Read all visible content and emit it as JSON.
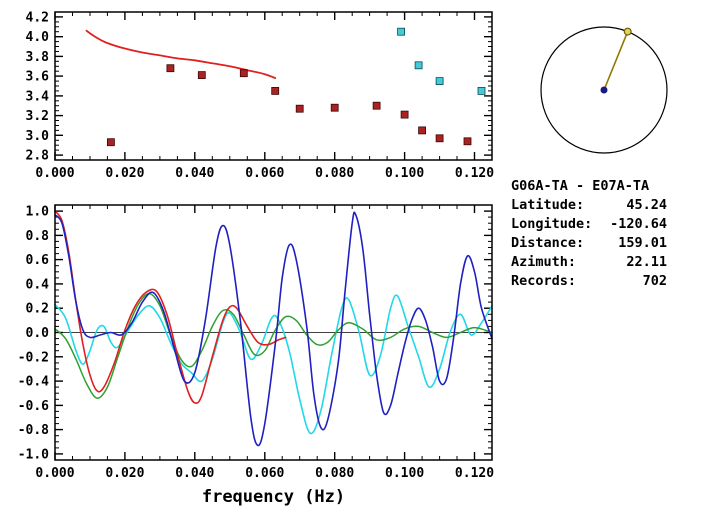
{
  "station_info": {
    "title": "G06A-TA - E07A-TA",
    "rows": [
      {
        "label": "Latitude:",
        "value": "45.24"
      },
      {
        "label": "Longitude:",
        "value": "-120.64"
      },
      {
        "label": "Distance:",
        "value": "159.01"
      },
      {
        "label": "Azimuth:",
        "value": "22.11"
      },
      {
        "label": "Records:",
        "value": "702"
      }
    ]
  },
  "chart_data": [
    {
      "id": "dispersion",
      "type": "scatter",
      "title": "",
      "xlabel": "",
      "ylabel": "",
      "xlim": [
        0,
        0.125
      ],
      "ylim": [
        2.75,
        4.25
      ],
      "xticks": [
        0.0,
        0.02,
        0.04,
        0.06,
        0.08,
        0.1,
        0.12
      ],
      "xtick_labels": [
        "0.000",
        "0.020",
        "0.040",
        "0.060",
        "0.080",
        "0.100",
        "0.120"
      ],
      "yticks": [
        2.8,
        3.0,
        3.2,
        3.4,
        3.6,
        3.8,
        4.0,
        4.2
      ],
      "ytick_labels": [
        "2.8",
        "3.0",
        "3.2",
        "3.4",
        "3.6",
        "3.8",
        "4.0",
        "4.2"
      ],
      "x_minor_step": 0.005,
      "y_minor_step": 0.05,
      "zero_line": false,
      "grid": false,
      "series": [
        {
          "name": "reference-dispersion-curve",
          "type": "line",
          "color": "#e02020",
          "width": 1.8,
          "points": [
            [
              0.009,
              4.06
            ],
            [
              0.011,
              4.01
            ],
            [
              0.014,
              3.95
            ],
            [
              0.017,
              3.91
            ],
            [
              0.02,
              3.88
            ],
            [
              0.025,
              3.84
            ],
            [
              0.03,
              3.81
            ],
            [
              0.035,
              3.78
            ],
            [
              0.04,
              3.76
            ],
            [
              0.045,
              3.73
            ],
            [
              0.05,
              3.7
            ],
            [
              0.055,
              3.66
            ],
            [
              0.06,
              3.62
            ],
            [
              0.063,
              3.58
            ]
          ]
        },
        {
          "name": "measured-phase-velocity",
          "type": "scatter",
          "marker": "square",
          "size": 7,
          "color": "#aa2222",
          "edge": "#3a0808",
          "points": [
            [
              0.016,
              2.93
            ],
            [
              0.033,
              3.68
            ],
            [
              0.042,
              3.61
            ],
            [
              0.054,
              3.63
            ],
            [
              0.063,
              3.45
            ],
            [
              0.07,
              3.27
            ],
            [
              0.08,
              3.28
            ],
            [
              0.092,
              3.3
            ],
            [
              0.1,
              3.21
            ],
            [
              0.105,
              3.05
            ],
            [
              0.11,
              2.97
            ],
            [
              0.118,
              2.94
            ]
          ]
        },
        {
          "name": "rejected-phase-velocity",
          "type": "scatter",
          "marker": "square",
          "size": 7,
          "color": "#45c8d8",
          "edge": "#0a4a52",
          "points": [
            [
              0.099,
              4.05
            ],
            [
              0.104,
              3.71
            ],
            [
              0.11,
              3.55
            ],
            [
              0.122,
              3.45
            ]
          ]
        }
      ]
    },
    {
      "id": "waveforms",
      "type": "line",
      "title": "",
      "xlabel": "frequency (Hz)",
      "ylabel": "",
      "xlim": [
        0,
        0.125
      ],
      "ylim": [
        -1.05,
        1.05
      ],
      "xticks": [
        0.0,
        0.02,
        0.04,
        0.06,
        0.08,
        0.1,
        0.12
      ],
      "xtick_labels": [
        "0.000",
        "0.020",
        "0.040",
        "0.060",
        "0.080",
        "0.100",
        "0.120"
      ],
      "yticks": [
        -1.0,
        -0.8,
        -0.6,
        -0.4,
        -0.2,
        0.0,
        0.2,
        0.4,
        0.6,
        0.8,
        1.0
      ],
      "ytick_labels": [
        "-1.0",
        "-0.8",
        "-0.6",
        "-0.4",
        "-0.2",
        "0.0",
        "0.2",
        "0.4",
        "0.6",
        "0.8",
        "1.0"
      ],
      "x_minor_step": 0.005,
      "y_minor_step": 0.05,
      "zero_line": true,
      "grid": false,
      "series": [
        {
          "name": "coherence-cyan",
          "type": "line",
          "color": "#20d8e8",
          "width": 1.6,
          "points": [
            [
              0.0,
              0.23
            ],
            [
              0.003,
              0.12
            ],
            [
              0.006,
              -0.15
            ],
            [
              0.008,
              -0.26
            ],
            [
              0.01,
              -0.15
            ],
            [
              0.012,
              0.02
            ],
            [
              0.014,
              0.05
            ],
            [
              0.016,
              -0.08
            ],
            [
              0.018,
              -0.12
            ],
            [
              0.021,
              0.02
            ],
            [
              0.024,
              0.15
            ],
            [
              0.027,
              0.22
            ],
            [
              0.03,
              0.12
            ],
            [
              0.033,
              -0.08
            ],
            [
              0.036,
              -0.25
            ],
            [
              0.039,
              -0.33
            ],
            [
              0.042,
              -0.4
            ],
            [
              0.045,
              -0.22
            ],
            [
              0.048,
              0.08
            ],
            [
              0.05,
              0.16
            ],
            [
              0.053,
              0.0
            ],
            [
              0.056,
              -0.22
            ],
            [
              0.059,
              -0.1
            ],
            [
              0.062,
              0.12
            ],
            [
              0.064,
              0.1
            ],
            [
              0.067,
              -0.15
            ],
            [
              0.07,
              -0.55
            ],
            [
              0.073,
              -0.83
            ],
            [
              0.076,
              -0.65
            ],
            [
              0.079,
              -0.2
            ],
            [
              0.082,
              0.2
            ],
            [
              0.084,
              0.27
            ],
            [
              0.087,
              0.0
            ],
            [
              0.09,
              -0.35
            ],
            [
              0.093,
              -0.2
            ],
            [
              0.096,
              0.2
            ],
            [
              0.098,
              0.3
            ],
            [
              0.101,
              0.05
            ],
            [
              0.104,
              -0.2
            ],
            [
              0.107,
              -0.45
            ],
            [
              0.11,
              -0.3
            ],
            [
              0.113,
              0.0
            ],
            [
              0.116,
              0.15
            ],
            [
              0.119,
              -0.02
            ],
            [
              0.122,
              0.08
            ],
            [
              0.125,
              0.22
            ]
          ]
        },
        {
          "name": "smoothed-green",
          "type": "line",
          "color": "#30a030",
          "width": 1.5,
          "points": [
            [
              0.0,
              0.03
            ],
            [
              0.003,
              -0.05
            ],
            [
              0.006,
              -0.22
            ],
            [
              0.009,
              -0.42
            ],
            [
              0.012,
              -0.54
            ],
            [
              0.015,
              -0.45
            ],
            [
              0.018,
              -0.2
            ],
            [
              0.021,
              0.05
            ],
            [
              0.024,
              0.24
            ],
            [
              0.027,
              0.32
            ],
            [
              0.03,
              0.22
            ],
            [
              0.033,
              -0.02
            ],
            [
              0.036,
              -0.22
            ],
            [
              0.039,
              -0.28
            ],
            [
              0.042,
              -0.15
            ],
            [
              0.045,
              0.05
            ],
            [
              0.048,
              0.18
            ],
            [
              0.051,
              0.15
            ],
            [
              0.054,
              -0.02
            ],
            [
              0.057,
              -0.18
            ],
            [
              0.06,
              -0.15
            ],
            [
              0.063,
              0.02
            ],
            [
              0.066,
              0.13
            ],
            [
              0.069,
              0.1
            ],
            [
              0.072,
              -0.02
            ],
            [
              0.075,
              -0.1
            ],
            [
              0.078,
              -0.08
            ],
            [
              0.081,
              0.02
            ],
            [
              0.084,
              0.08
            ],
            [
              0.088,
              0.03
            ],
            [
              0.092,
              -0.06
            ],
            [
              0.096,
              -0.04
            ],
            [
              0.1,
              0.03
            ],
            [
              0.104,
              0.05
            ],
            [
              0.108,
              0.0
            ],
            [
              0.112,
              -0.04
            ],
            [
              0.116,
              0.0
            ],
            [
              0.12,
              0.04
            ],
            [
              0.125,
              0.0
            ]
          ]
        },
        {
          "name": "model-fit-red",
          "type": "line",
          "color": "#e02020",
          "width": 1.6,
          "points": [
            [
              0.0,
              1.0
            ],
            [
              0.002,
              0.92
            ],
            [
              0.004,
              0.65
            ],
            [
              0.006,
              0.25
            ],
            [
              0.008,
              -0.1
            ],
            [
              0.01,
              -0.35
            ],
            [
              0.012,
              -0.48
            ],
            [
              0.014,
              -0.45
            ],
            [
              0.017,
              -0.25
            ],
            [
              0.02,
              0.02
            ],
            [
              0.023,
              0.22
            ],
            [
              0.026,
              0.33
            ],
            [
              0.029,
              0.34
            ],
            [
              0.032,
              0.15
            ],
            [
              0.035,
              -0.18
            ],
            [
              0.038,
              -0.48
            ],
            [
              0.04,
              -0.58
            ],
            [
              0.042,
              -0.52
            ],
            [
              0.045,
              -0.2
            ],
            [
              0.048,
              0.1
            ],
            [
              0.05,
              0.21
            ],
            [
              0.052,
              0.2
            ],
            [
              0.055,
              0.05
            ],
            [
              0.058,
              -0.08
            ],
            [
              0.061,
              -0.1
            ],
            [
              0.064,
              -0.06
            ],
            [
              0.066,
              -0.04
            ]
          ]
        },
        {
          "name": "cross-spectrum-blue",
          "type": "line",
          "color": "#2020c0",
          "width": 1.6,
          "points": [
            [
              0.0,
              0.97
            ],
            [
              0.002,
              0.9
            ],
            [
              0.004,
              0.62
            ],
            [
              0.006,
              0.25
            ],
            [
              0.008,
              0.02
            ],
            [
              0.01,
              -0.04
            ],
            [
              0.013,
              -0.02
            ],
            [
              0.016,
              0.0
            ],
            [
              0.019,
              -0.02
            ],
            [
              0.022,
              0.08
            ],
            [
              0.025,
              0.25
            ],
            [
              0.028,
              0.33
            ],
            [
              0.031,
              0.18
            ],
            [
              0.034,
              -0.12
            ],
            [
              0.037,
              -0.4
            ],
            [
              0.04,
              -0.33
            ],
            [
              0.043,
              0.1
            ],
            [
              0.046,
              0.7
            ],
            [
              0.048,
              0.88
            ],
            [
              0.05,
              0.72
            ],
            [
              0.053,
              0.1
            ],
            [
              0.056,
              -0.7
            ],
            [
              0.058,
              -0.93
            ],
            [
              0.06,
              -0.75
            ],
            [
              0.063,
              -0.1
            ],
            [
              0.065,
              0.45
            ],
            [
              0.067,
              0.72
            ],
            [
              0.069,
              0.6
            ],
            [
              0.072,
              0.05
            ],
            [
              0.074,
              -0.5
            ],
            [
              0.076,
              -0.78
            ],
            [
              0.078,
              -0.72
            ],
            [
              0.081,
              -0.25
            ],
            [
              0.083,
              0.35
            ],
            [
              0.085,
              0.9
            ],
            [
              0.086,
              0.97
            ],
            [
              0.088,
              0.7
            ],
            [
              0.09,
              0.15
            ],
            [
              0.092,
              -0.35
            ],
            [
              0.094,
              -0.66
            ],
            [
              0.096,
              -0.6
            ],
            [
              0.098,
              -0.35
            ],
            [
              0.1,
              -0.1
            ],
            [
              0.102,
              0.1
            ],
            [
              0.104,
              0.2
            ],
            [
              0.106,
              0.1
            ],
            [
              0.108,
              -0.12
            ],
            [
              0.11,
              -0.4
            ],
            [
              0.112,
              -0.38
            ],
            [
              0.114,
              -0.05
            ],
            [
              0.116,
              0.4
            ],
            [
              0.118,
              0.63
            ],
            [
              0.12,
              0.5
            ],
            [
              0.122,
              0.2
            ],
            [
              0.125,
              -0.05
            ]
          ]
        }
      ]
    },
    {
      "id": "azimuth-dial",
      "type": "dial",
      "azimuth_deg": 22.11,
      "ring_color": "#000000",
      "line_color": "#8f7a00",
      "marker_fill": "#e6cf5a",
      "marker_stroke": "#6b5c00",
      "center_color": "#1a1a80"
    }
  ]
}
